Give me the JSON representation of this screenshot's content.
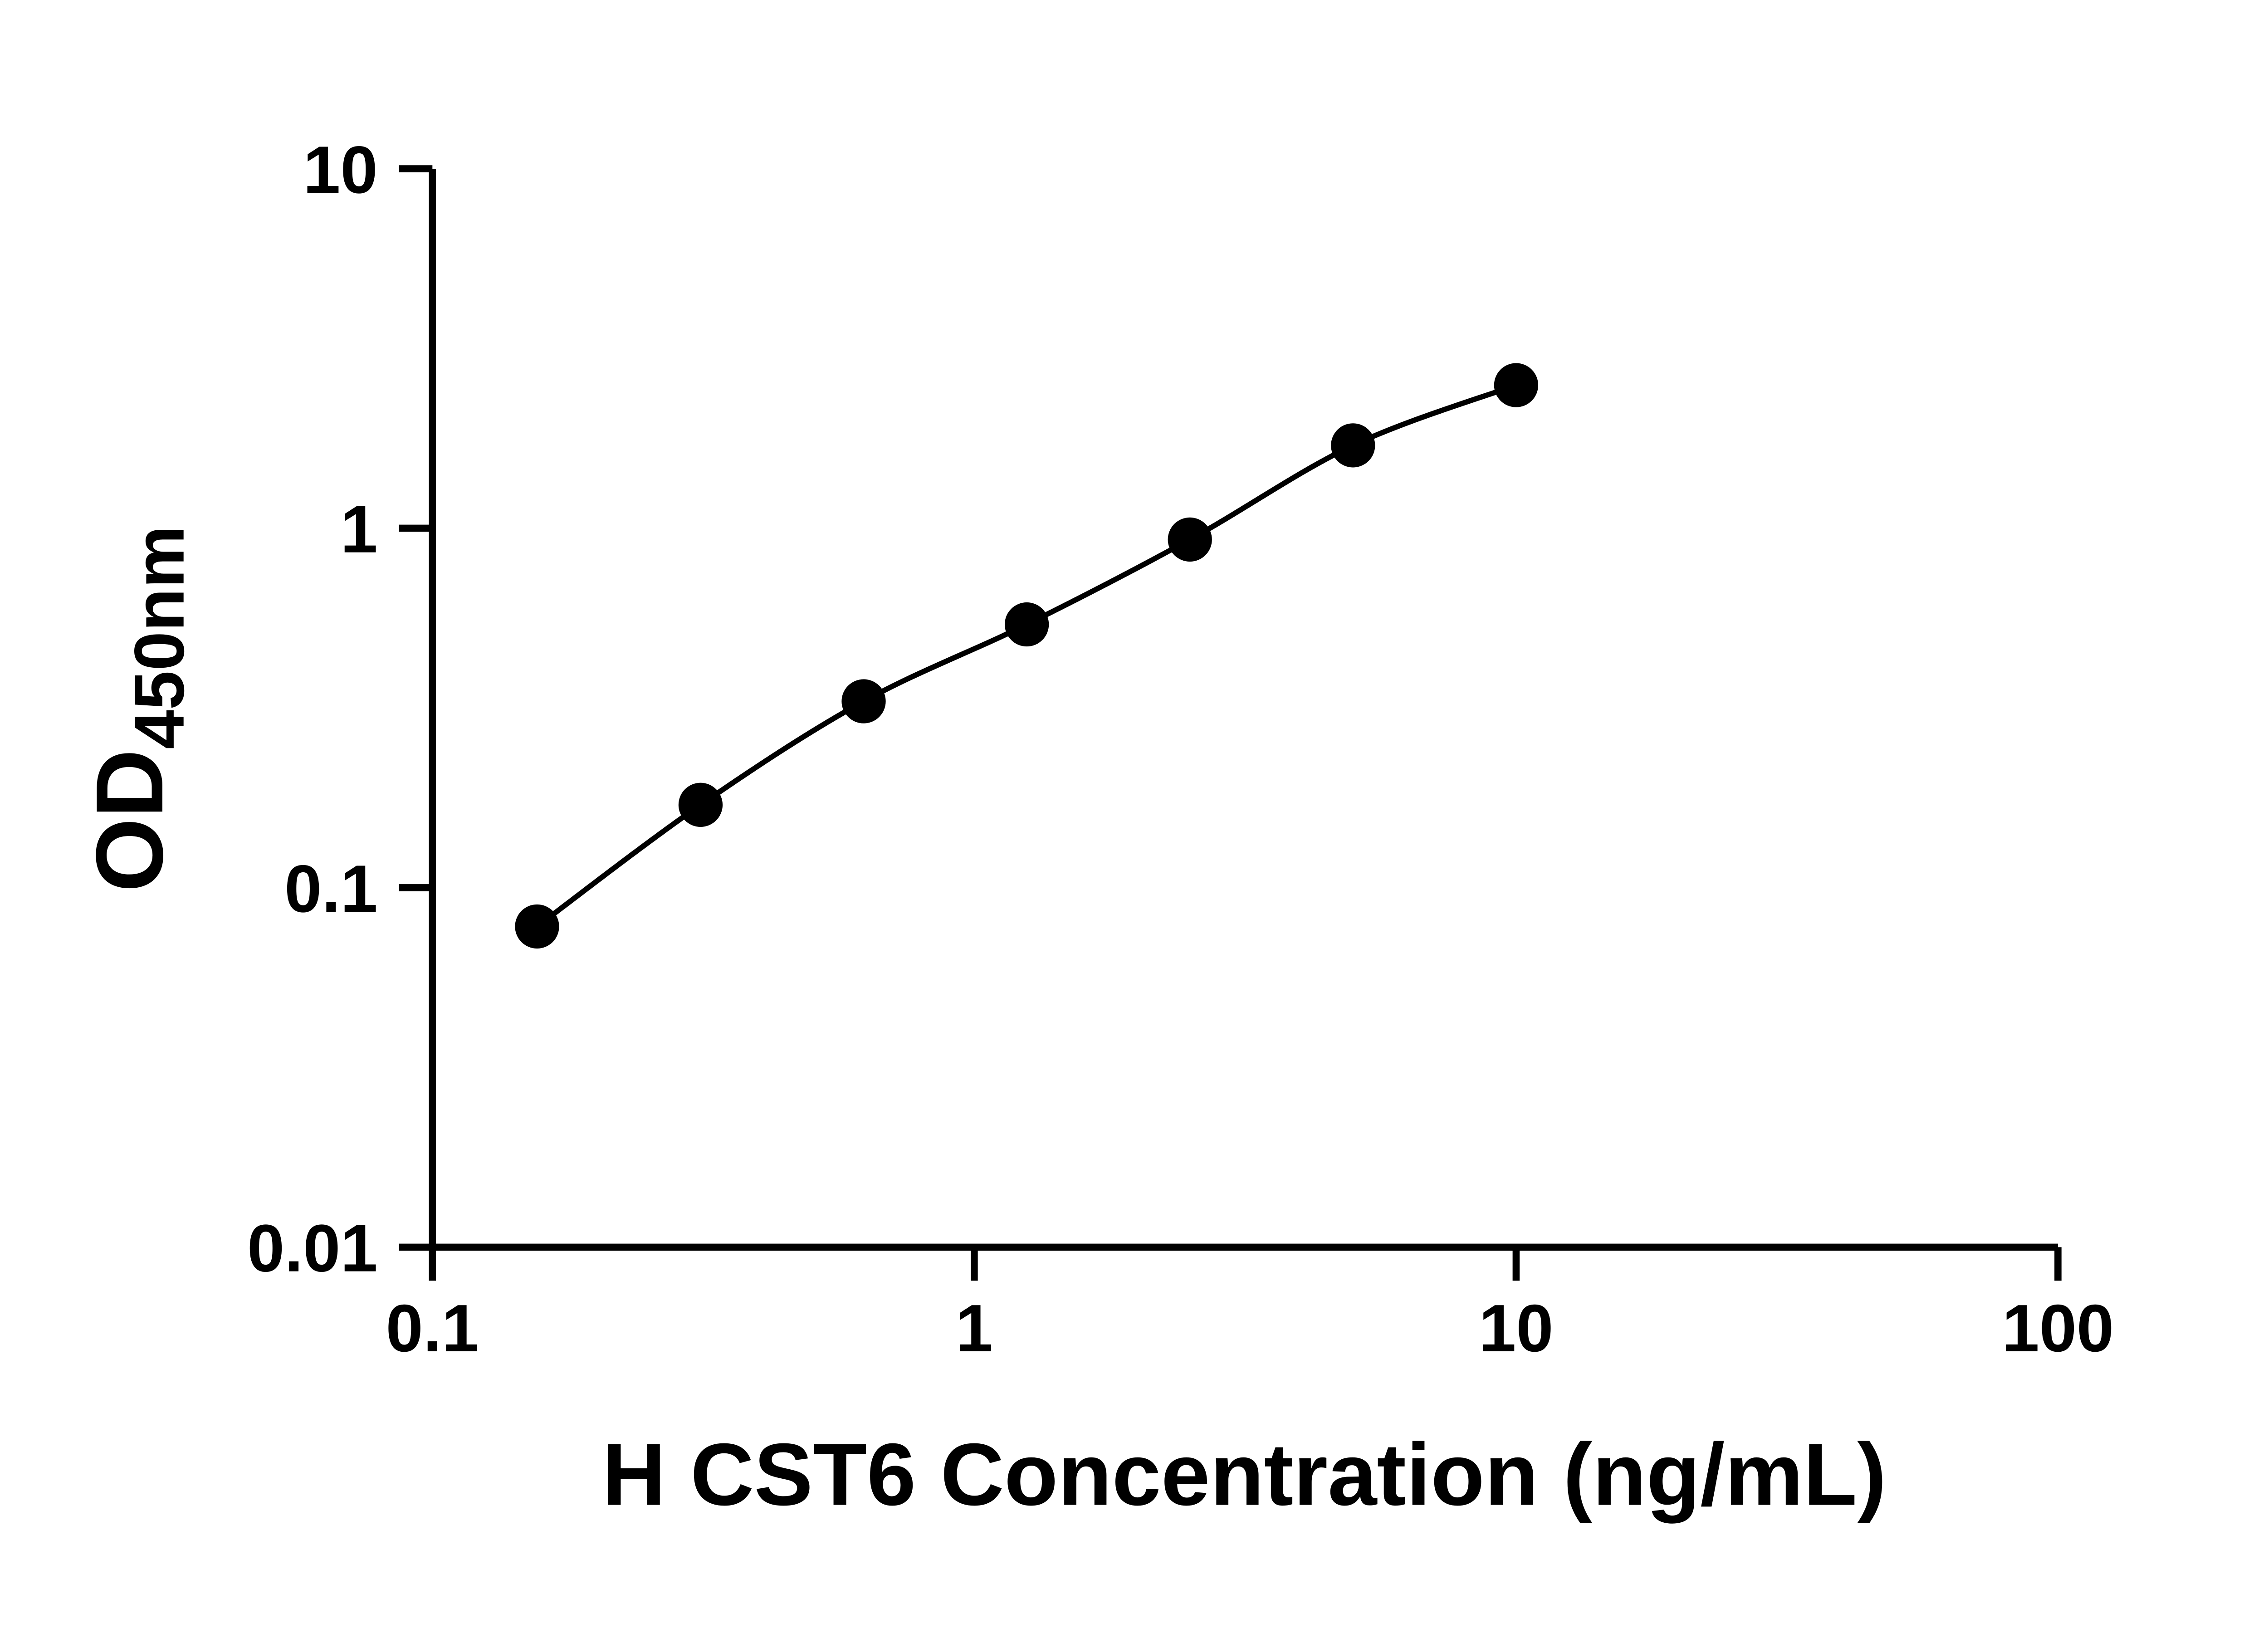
{
  "chart_data": {
    "type": "scatter",
    "x_scale": "log",
    "y_scale": "log",
    "xlim": [
      0.1,
      100
    ],
    "ylim": [
      0.01,
      10
    ],
    "xlabel": "H CST6 Concentration (ng/mL)",
    "ylabel_main": "OD",
    "ylabel_sub": "450nm",
    "grid": false,
    "legend": "none",
    "x_ticks": [
      {
        "value": 0.1,
        "label": "0.1"
      },
      {
        "value": 1,
        "label": "1"
      },
      {
        "value": 10,
        "label": "10"
      },
      {
        "value": 100,
        "label": "100"
      }
    ],
    "y_ticks": [
      {
        "value": 0.01,
        "label": "0.01"
      },
      {
        "value": 0.1,
        "label": "0.1"
      },
      {
        "value": 1,
        "label": "1"
      },
      {
        "value": 10,
        "label": "10"
      }
    ],
    "series": [
      {
        "marker": "filled-circle",
        "line": "smooth",
        "color": "#000000",
        "points": [
          {
            "x": 0.156,
            "y": 0.078
          },
          {
            "x": 0.3125,
            "y": 0.17
          },
          {
            "x": 0.625,
            "y": 0.33
          },
          {
            "x": 1.25,
            "y": 0.54
          },
          {
            "x": 2.5,
            "y": 0.93
          },
          {
            "x": 5,
            "y": 1.7
          },
          {
            "x": 10,
            "y": 2.5
          }
        ]
      }
    ]
  },
  "colors": {
    "background": "#ffffff",
    "axis": "#000000",
    "text": "#000000",
    "marker": "#000000",
    "curve": "#000000"
  }
}
